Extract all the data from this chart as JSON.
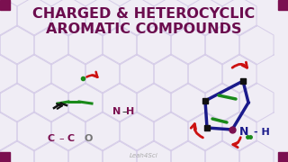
{
  "title_line1": "CHARGED & HETEROCYCLIC",
  "title_line2": "AROMATIC COMPOUNDS",
  "title_color": "#6B0C4E",
  "bg_color": "#F0EDF5",
  "watermark": "Leah4Sci",
  "hex_color": "#D5CCE8",
  "corner_color": "#7B1050",
  "orange": "#FF8C00",
  "blue": "#1565C0",
  "dark_blue": "#1a1a8B",
  "green": "#1A8A1A",
  "red": "#CC1111",
  "purple": "#7B1050",
  "gray": "#777777",
  "black": "#111111"
}
